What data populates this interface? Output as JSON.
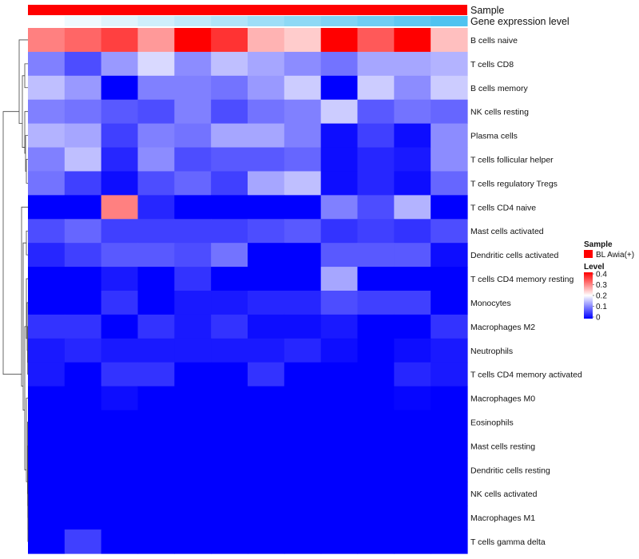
{
  "chart_data": {
    "type": "heatmap",
    "title": "",
    "annotation_tracks": [
      {
        "name": "Sample",
        "label": "Sample",
        "color": "#ff0000"
      },
      {
        "name": "Gene expression level",
        "label": "Gene expression level",
        "low_color": "#ffffff",
        "high_color": "#4fc3f0",
        "values": [
          0.0,
          0.09,
          0.18,
          0.27,
          0.36,
          0.45,
          0.55,
          0.64,
          0.73,
          0.82,
          0.91,
          1.0
        ]
      }
    ],
    "rows": [
      "B cells naive",
      "T cells CD8",
      "B cells memory",
      "NK cells resting",
      "Plasma cells",
      "T cells follicular helper",
      "T cells regulatory  Tregs",
      "T cells CD4 naive",
      "Mast cells activated",
      "Dendritic cells activated",
      "T cells CD4 memory resting",
      "Monocytes",
      "Macrophages M2",
      "Neutrophils",
      "T cells CD4 memory activated",
      "Macrophages M0",
      "Eosinophils",
      "Mast cells resting",
      "Dendritic cells resting",
      "NK cells activated",
      "Macrophages M1",
      "T cells gamma delta"
    ],
    "column_count": 12,
    "values": [
      [
        0.3,
        0.32,
        0.35,
        0.28,
        0.4,
        0.36,
        0.26,
        0.24,
        0.4,
        0.33,
        0.4,
        0.25
      ],
      [
        0.1,
        0.06,
        0.12,
        0.17,
        0.11,
        0.15,
        0.13,
        0.11,
        0.09,
        0.13,
        0.13,
        0.14
      ],
      [
        0.15,
        0.12,
        0.0,
        0.1,
        0.1,
        0.09,
        0.12,
        0.16,
        0.0,
        0.16,
        0.11,
        0.16
      ],
      [
        0.1,
        0.09,
        0.07,
        0.06,
        0.1,
        0.06,
        0.09,
        0.1,
        0.16,
        0.07,
        0.09,
        0.08
      ],
      [
        0.14,
        0.13,
        0.05,
        0.1,
        0.09,
        0.13,
        0.13,
        0.1,
        0.01,
        0.05,
        0.01,
        0.11
      ],
      [
        0.1,
        0.15,
        0.03,
        0.11,
        0.06,
        0.07,
        0.07,
        0.08,
        0.01,
        0.03,
        0.02,
        0.11
      ],
      [
        0.09,
        0.05,
        0.01,
        0.06,
        0.08,
        0.05,
        0.13,
        0.15,
        0.01,
        0.03,
        0.01,
        0.08
      ],
      [
        0.0,
        0.0,
        0.3,
        0.03,
        0.0,
        0.0,
        0.0,
        0.0,
        0.1,
        0.06,
        0.14,
        0.0
      ],
      [
        0.06,
        0.08,
        0.05,
        0.05,
        0.05,
        0.05,
        0.06,
        0.07,
        0.04,
        0.05,
        0.04,
        0.06
      ],
      [
        0.03,
        0.05,
        0.07,
        0.07,
        0.06,
        0.09,
        0.0,
        0.0,
        0.07,
        0.07,
        0.07,
        0.01
      ],
      [
        0.0,
        0.0,
        0.02,
        0.0,
        0.04,
        0.0,
        0.0,
        0.0,
        0.13,
        0.0,
        0.0,
        0.0
      ],
      [
        0.0,
        0.0,
        0.04,
        0.0,
        0.02,
        0.02,
        0.03,
        0.03,
        0.06,
        0.05,
        0.05,
        0.0
      ],
      [
        0.04,
        0.04,
        0.0,
        0.04,
        0.02,
        0.04,
        0.01,
        0.01,
        0.02,
        0.0,
        0.0,
        0.04
      ],
      [
        0.02,
        0.03,
        0.02,
        0.02,
        0.02,
        0.02,
        0.02,
        0.03,
        0.01,
        0.0,
        0.01,
        0.02
      ],
      [
        0.02,
        0.0,
        0.04,
        0.04,
        0.0,
        0.0,
        0.04,
        0.0,
        0.0,
        0.0,
        0.03,
        0.02
      ],
      [
        0.0,
        0.0,
        0.01,
        0.0,
        0.0,
        0.0,
        0.0,
        0.0,
        0.0,
        0.0,
        0.005,
        0.0
      ],
      [
        0.0,
        0.0,
        0.0,
        0.0,
        0.0,
        0.0,
        0.0,
        0.0,
        0.0,
        0.0,
        0.0,
        0.0
      ],
      [
        0.0,
        0.0,
        0.0,
        0.0,
        0.0,
        0.0,
        0.0,
        0.0,
        0.0,
        0.0,
        0.0,
        0.0
      ],
      [
        0.0,
        0.0,
        0.0,
        0.0,
        0.0,
        0.0,
        0.0,
        0.0,
        0.0,
        0.0,
        0.0,
        0.0
      ],
      [
        0.0,
        0.0,
        0.0,
        0.0,
        0.0,
        0.0,
        0.0,
        0.0,
        0.0,
        0.0,
        0.0,
        0.0
      ],
      [
        0.0,
        0.0,
        0.0,
        0.0,
        0.0,
        0.0,
        0.0,
        0.0,
        0.0,
        0.0,
        0.0,
        0.0
      ],
      [
        0.0,
        0.05,
        0.0,
        0.0,
        0.0,
        0.0,
        0.0,
        0.0,
        0.0,
        0.0,
        0.0,
        0.0
      ]
    ],
    "color_scale": {
      "low": "#0000ff",
      "mid": "#ffffff",
      "high": "#ff0000",
      "mid_value": 0.2,
      "range": [
        0,
        0.4
      ],
      "ticks": [
        "0.4",
        "0.3",
        "0.2",
        "0.1",
        "0"
      ]
    },
    "legend": {
      "position": "right",
      "sample_title": "Sample",
      "sample_entry": "BL Awia(+)",
      "sample_color": "#ff0000",
      "level_title": "Level"
    },
    "row_dendrogram": true
  }
}
